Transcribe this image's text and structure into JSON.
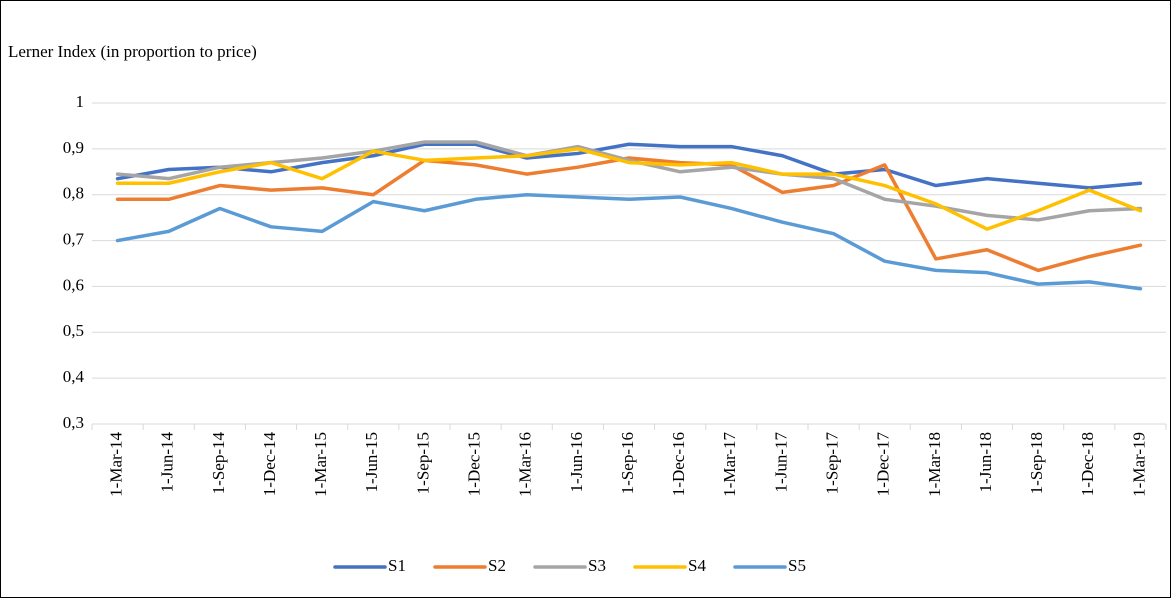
{
  "chart_data": {
    "type": "line",
    "title": "Lerner Index (in proportion to price)",
    "categories": [
      "1-Mar-14",
      "1-Jun-14",
      "1-Sep-14",
      "1-Dec-14",
      "1-Mar-15",
      "1-Jun-15",
      "1-Sep-15",
      "1-Dec-15",
      "1-Mar-16",
      "1-Jun-16",
      "1-Sep-16",
      "1-Dec-16",
      "1-Mar-17",
      "1-Jun-17",
      "1-Sep-17",
      "1-Dec-17",
      "1-Mar-18",
      "1-Jun-18",
      "1-Sep-18",
      "1-Dec-18",
      "1-Mar-19"
    ],
    "series": [
      {
        "name": "S1",
        "color": "#4472c4",
        "values": [
          0.835,
          0.855,
          0.86,
          0.85,
          0.87,
          0.885,
          0.91,
          0.91,
          0.88,
          0.89,
          0.91,
          0.905,
          0.905,
          0.885,
          0.845,
          0.855,
          0.82,
          0.835,
          0.825,
          0.815,
          0.825
        ]
      },
      {
        "name": "S2",
        "color": "#ed7d31",
        "values": [
          0.79,
          0.79,
          0.82,
          0.81,
          0.815,
          0.8,
          0.875,
          0.865,
          0.845,
          0.86,
          0.88,
          0.87,
          0.865,
          0.805,
          0.82,
          0.865,
          0.66,
          0.68,
          0.635,
          0.665,
          0.69
        ]
      },
      {
        "name": "S3",
        "color": "#a5a5a5",
        "values": [
          0.845,
          0.835,
          0.86,
          0.87,
          0.88,
          0.895,
          0.915,
          0.915,
          0.885,
          0.905,
          0.875,
          0.85,
          0.86,
          0.845,
          0.835,
          0.79,
          0.775,
          0.755,
          0.745,
          0.765,
          0.77
        ]
      },
      {
        "name": "S4",
        "color": "#ffc000",
        "values": [
          0.825,
          0.825,
          0.85,
          0.87,
          0.835,
          0.895,
          0.875,
          0.88,
          0.885,
          0.9,
          0.87,
          0.865,
          0.87,
          0.845,
          0.845,
          0.82,
          0.78,
          0.725,
          0.765,
          0.81,
          0.765
        ]
      },
      {
        "name": "S5",
        "color": "#5b9bd5",
        "values": [
          0.7,
          0.72,
          0.77,
          0.73,
          0.72,
          0.785,
          0.765,
          0.79,
          0.8,
          0.795,
          0.79,
          0.795,
          0.77,
          0.74,
          0.715,
          0.655,
          0.635,
          0.63,
          0.605,
          0.61,
          0.595
        ]
      }
    ],
    "ylim": [
      0.3,
      1
    ],
    "yticks": [
      {
        "value": 0.3,
        "label": "0,3"
      },
      {
        "value": 0.4,
        "label": "0,4"
      },
      {
        "value": 0.5,
        "label": "0,5"
      },
      {
        "value": 0.6,
        "label": "0,6"
      },
      {
        "value": 0.7,
        "label": "0,7"
      },
      {
        "value": 0.8,
        "label": "0,8"
      },
      {
        "value": 0.9,
        "label": "0,9"
      },
      1
    ],
    "grid": true
  }
}
